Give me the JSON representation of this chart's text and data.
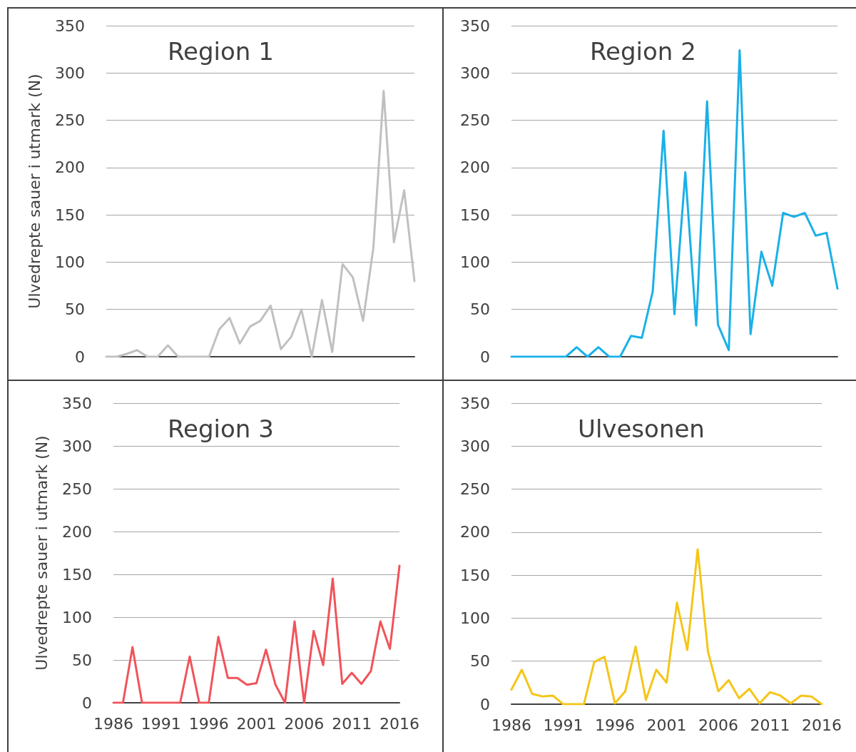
{
  "chart_data": [
    {
      "type": "line",
      "title": "Region 1",
      "ylabel": "Ulvedrepte sauer i utmark (N)",
      "categories": [
        null,
        null,
        null,
        null,
        null,
        null,
        null,
        null,
        null,
        null,
        null,
        null,
        null,
        null,
        null,
        null,
        null,
        null,
        null,
        null,
        null,
        null,
        null,
        null,
        null,
        null,
        null,
        null,
        null,
        null,
        null
      ],
      "tick_labels": "y",
      "series": [
        {
          "color": "#c0c0c0",
          "values": [
            0,
            0,
            3,
            7,
            0,
            0,
            12,
            0,
            0,
            0,
            0,
            29,
            41,
            14,
            32,
            38,
            54,
            8,
            21,
            50,
            0,
            60,
            5,
            98,
            84,
            38,
            115,
            281,
            121,
            176,
            80
          ]
        }
      ],
      "ylim": [
        0,
        350
      ],
      "yticks": [
        0,
        50,
        100,
        150,
        200,
        250,
        300,
        350
      ],
      "grid": "y",
      "marker": "none",
      "line_style": "solid"
    },
    {
      "type": "line",
      "title": "Region 2",
      "categories": [
        null,
        null,
        null,
        null,
        null,
        null,
        null,
        null,
        null,
        null,
        null,
        null,
        null,
        null,
        null,
        null,
        null,
        null,
        null,
        null,
        null,
        null,
        null,
        null,
        null,
        null,
        null,
        null,
        null,
        null,
        null
      ],
      "tick_labels": "y",
      "series": [
        {
          "color": "#1ab0e8",
          "values": [
            0,
            0,
            0,
            0,
            0,
            0,
            10,
            0,
            10,
            0,
            0,
            22,
            20,
            69,
            239,
            45,
            195,
            33,
            270,
            34,
            7,
            324,
            24,
            111,
            75,
            152,
            148,
            152,
            128,
            131,
            72
          ]
        }
      ],
      "ylim": [
        0,
        350
      ],
      "yticks": [
        0,
        50,
        100,
        150,
        200,
        250,
        300,
        350
      ],
      "grid": "y",
      "marker": "none",
      "line_style": "solid"
    },
    {
      "type": "line",
      "title": "Region 3",
      "ylabel": "Ulvedrepte sauer i utmark (N)",
      "categories": [
        "1986",
        null,
        null,
        null,
        null,
        "1991",
        null,
        null,
        null,
        null,
        "1996",
        null,
        null,
        null,
        null,
        "2001",
        null,
        null,
        null,
        null,
        "2006",
        null,
        null,
        null,
        null,
        "2011",
        null,
        null,
        null,
        null,
        "2016"
      ],
      "series": [
        {
          "color": "#f0545a",
          "values": [
            0,
            0,
            65,
            0,
            0,
            0,
            0,
            0,
            54,
            0,
            0,
            77,
            29,
            29,
            21,
            23,
            62,
            21,
            0,
            95,
            0,
            84,
            44,
            145,
            22,
            35,
            22,
            37,
            95,
            63,
            160
          ]
        }
      ],
      "ylim": [
        0,
        350
      ],
      "yticks": [
        0,
        50,
        100,
        150,
        200,
        250,
        300,
        350
      ],
      "grid": "y",
      "marker": "none",
      "line_style": "solid"
    },
    {
      "type": "line",
      "title": "Ulvesonen",
      "categories": [
        "1986",
        null,
        null,
        null,
        null,
        "1991",
        null,
        null,
        null,
        null,
        "1996",
        null,
        null,
        null,
        null,
        "2001",
        null,
        null,
        null,
        null,
        "2006",
        null,
        null,
        null,
        null,
        "2011",
        null,
        null,
        null,
        null,
        "2016"
      ],
      "series": [
        {
          "color": "#f5c518",
          "values": [
            17,
            40,
            12,
            9,
            10,
            0,
            0,
            0,
            49,
            55,
            1,
            15,
            67,
            5,
            40,
            25,
            118,
            63,
            180,
            61,
            15,
            28,
            7,
            18,
            1,
            14,
            10,
            1,
            10,
            9,
            0
          ]
        }
      ],
      "ylim": [
        0,
        350
      ],
      "yticks": [
        0,
        50,
        100,
        150,
        200,
        250,
        300,
        350
      ],
      "grid": "y",
      "marker": "none",
      "line_style": "solid"
    }
  ]
}
